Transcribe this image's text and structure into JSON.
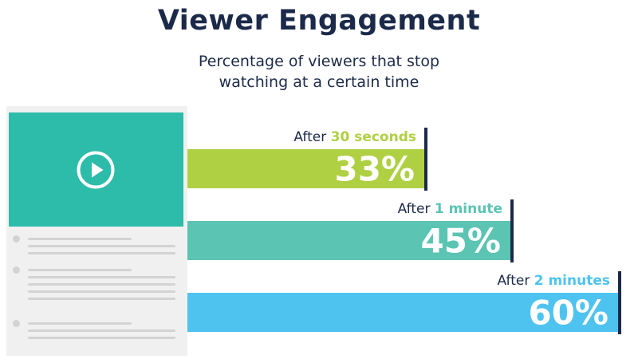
{
  "title": "Viewer Engagement",
  "subtitle_line1": "Percentage of viewers that stop",
  "subtitle_line2": "watching at a certain time",
  "illustration": {
    "video_icon": "play-icon"
  },
  "colors": {
    "title": "#1c2a4a",
    "bar1": "#afd043",
    "bar2": "#5bc4b3",
    "bar3": "#4fc3f0",
    "marker": "#1c2a4a"
  },
  "chart_data": {
    "type": "bar",
    "orientation": "horizontal",
    "title": "Viewer Engagement",
    "subtitle": "Percentage of viewers that stop watching at a certain time",
    "categories": [
      "After 30 seconds",
      "After 1 minute",
      "After 2 minutes"
    ],
    "label_prefix": "After",
    "label_highlights": [
      "30 seconds",
      "1 minute",
      "2 minutes"
    ],
    "values": [
      33,
      45,
      60
    ],
    "value_labels": [
      "33%",
      "45%",
      "60%"
    ],
    "unit": "%",
    "xlim": [
      0,
      60
    ],
    "grid": false,
    "legend": "none"
  }
}
